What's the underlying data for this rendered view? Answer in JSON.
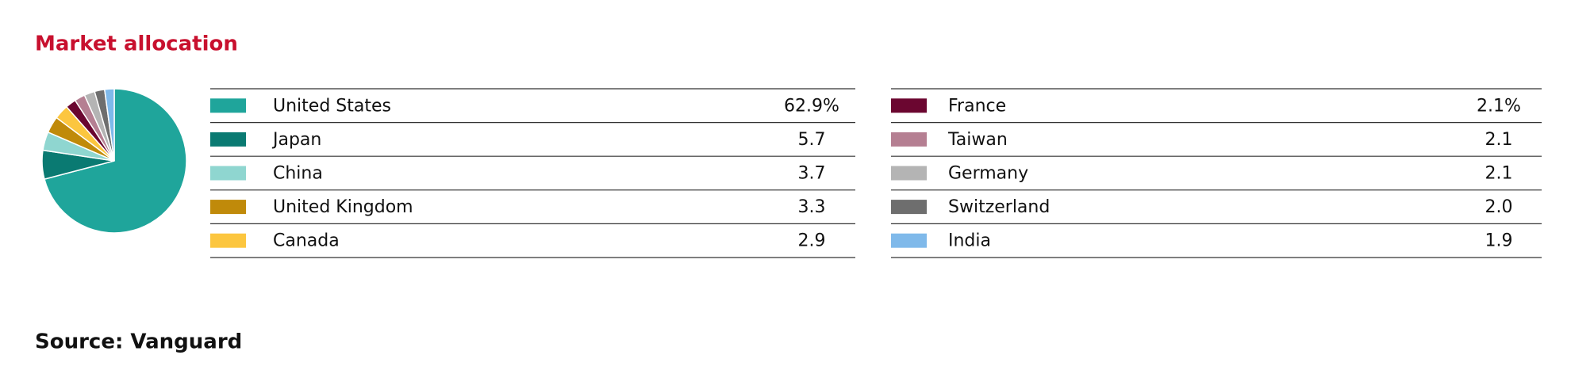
{
  "chart_data": {
    "type": "pie",
    "title": "Market allocation",
    "categories": [
      "United States",
      "Japan",
      "China",
      "United Kingdom",
      "Canada",
      "France",
      "Taiwan",
      "Germany",
      "Switzerland",
      "India"
    ],
    "values": [
      62.9,
      5.7,
      3.7,
      3.3,
      2.9,
      2.1,
      2.1,
      2.1,
      2.0,
      1.9
    ],
    "value_labels": [
      "62.9%",
      "5.7",
      "3.7",
      "3.3",
      "2.9",
      "2.1%",
      "2.1",
      "2.1",
      "2.0",
      "1.9"
    ],
    "colors": [
      "#1fa59b",
      "#0a7a72",
      "#8fd6d0",
      "#c08a0a",
      "#fcc63f",
      "#6b0630",
      "#b57f92",
      "#b4b4b4",
      "#6e6e6e",
      "#7fb9ea"
    ]
  },
  "source": "Source: Vanguard"
}
